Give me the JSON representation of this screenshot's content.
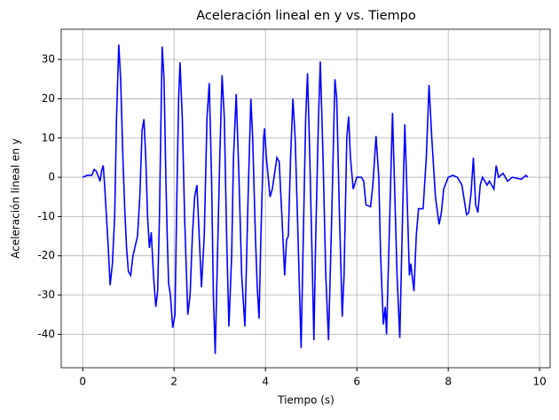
{
  "chart_data": {
    "type": "line",
    "title": "Aceleración lineal en y vs. Tiempo",
    "x_label": "Tiempo (s)",
    "y_label": "Aceleración lineal en y",
    "x": [
      0.0,
      0.1,
      0.2,
      0.25,
      0.3,
      0.35,
      0.38,
      0.42,
      0.45,
      0.48,
      0.52,
      0.56,
      0.6,
      0.65,
      0.7,
      0.74,
      0.79,
      0.83,
      0.88,
      0.92,
      0.96,
      1.0,
      1.05,
      1.1,
      1.2,
      1.25,
      1.3,
      1.34,
      1.38,
      1.42,
      1.46,
      1.5,
      1.55,
      1.6,
      1.64,
      1.68,
      1.72,
      1.74,
      1.78,
      1.82,
      1.85,
      1.88,
      1.92,
      1.97,
      2.02,
      2.06,
      2.1,
      2.13,
      2.18,
      2.23,
      2.3,
      2.35,
      2.4,
      2.45,
      2.5,
      2.55,
      2.6,
      2.66,
      2.72,
      2.77,
      2.82,
      2.86,
      2.9,
      2.95,
      3.0,
      3.05,
      3.1,
      3.15,
      3.2,
      3.26,
      3.3,
      3.36,
      3.42,
      3.48,
      3.55,
      3.62,
      3.68,
      3.72,
      3.78,
      3.82,
      3.86,
      3.9,
      3.96,
      3.98,
      4.02,
      4.1,
      4.15,
      4.25,
      4.3,
      4.36,
      4.42,
      4.46,
      4.5,
      4.55,
      4.6,
      4.65,
      4.7,
      4.78,
      4.82,
      4.88,
      4.92,
      4.96,
      5.02,
      5.06,
      5.1,
      5.16,
      5.2,
      5.26,
      5.32,
      5.38,
      5.45,
      5.52,
      5.56,
      5.62,
      5.68,
      5.72,
      5.78,
      5.82,
      5.86,
      5.92,
      6.0,
      6.1,
      6.15,
      6.2,
      6.3,
      6.35,
      6.42,
      6.48,
      6.52,
      6.58,
      6.62,
      6.65,
      6.72,
      6.78,
      6.82,
      6.88,
      6.94,
      7.0,
      7.05,
      7.1,
      7.15,
      7.18,
      7.25,
      7.3,
      7.35,
      7.45,
      7.52,
      7.58,
      7.64,
      7.72,
      7.8,
      7.85,
      7.9,
      8.0,
      8.1,
      8.2,
      8.3,
      8.4,
      8.45,
      8.5,
      8.55,
      8.6,
      8.65,
      8.7,
      8.75,
      8.85,
      8.9,
      9.0,
      9.05,
      9.1,
      9.2,
      9.3,
      9.4,
      9.6,
      9.7,
      9.74
    ],
    "series": [
      {
        "color": "#0000ff",
        "values": [
          0,
          0.5,
          0.5,
          2,
          1.5,
          0,
          -1,
          2,
          3,
          -2,
          -10,
          -18,
          -27.5,
          -22,
          -10,
          15,
          33.8,
          25,
          5,
          -8,
          -18,
          -24,
          -25,
          -20,
          -15,
          -5,
          12,
          14.8,
          5,
          -10,
          -18,
          -14,
          -25,
          -33,
          -29,
          -10,
          20,
          33.3,
          25,
          0,
          -15,
          -27,
          -30,
          -38.3,
          -35,
          -5,
          20,
          29.3,
          15,
          -10,
          -35,
          -30,
          -15,
          -5,
          -2,
          -15,
          -28,
          -15,
          15,
          24,
          0,
          -30,
          -45,
          -20,
          5,
          26,
          15,
          -15,
          -38,
          -20,
          5,
          21.2,
          0,
          -25,
          -38,
          -5,
          20,
          10,
          -15,
          -28,
          -36,
          -15,
          10,
          12.5,
          5,
          -5,
          -3,
          5,
          4,
          -10,
          -25,
          -16,
          -15,
          5,
          20,
          10,
          -10,
          -43.5,
          -20,
          15,
          26.5,
          10,
          -20,
          -41.5,
          -15,
          15,
          29.5,
          5,
          -25,
          -41.5,
          -10,
          25,
          20,
          -10,
          -35.5,
          -25,
          10,
          15.5,
          5,
          -3,
          0,
          0,
          -1,
          -7,
          -7.5,
          -2,
          10.5,
          0,
          -20,
          -37.5,
          -33,
          -40,
          -10,
          16.4,
          0,
          -25,
          -40.9,
          -10,
          13.5,
          -5,
          -25,
          -22,
          -29,
          -15,
          -8,
          -8,
          5,
          23.5,
          10,
          -5,
          -12,
          -9,
          -3,
          0,
          0.5,
          0,
          -2,
          -9.5,
          -9,
          -4,
          5,
          -7,
          -9,
          -2,
          0,
          -2,
          -1,
          -3,
          3,
          0,
          1,
          -1,
          0,
          -0.5,
          0.5,
          0
        ]
      }
    ],
    "xlim": [
      -0.47,
      10.23
    ],
    "ylim": [
      -48.5,
      37.7
    ],
    "xticks": [
      0,
      2,
      4,
      6,
      8,
      10
    ],
    "yticks": [
      -40,
      -30,
      -20,
      -10,
      0,
      10,
      20,
      30
    ],
    "grid": true
  }
}
